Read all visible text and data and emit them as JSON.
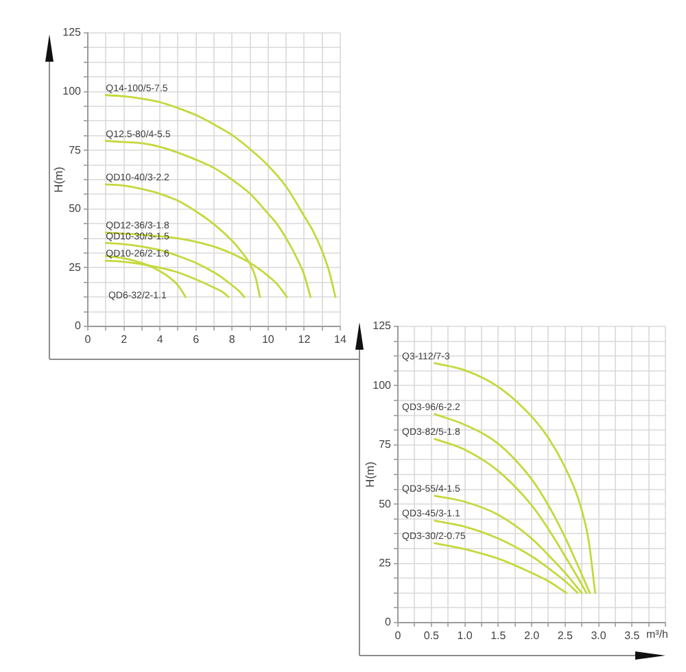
{
  "chart_data": [
    {
      "type": "line",
      "ylabel": "H(m)",
      "xlim": [
        0,
        14
      ],
      "xticks": [
        0,
        {
          "value": 1,
          "label": null
        },
        2,
        {
          "value": 3,
          "label": null
        },
        4,
        {
          "value": 5,
          "label": null
        },
        6,
        {
          "value": 7,
          "label": null
        },
        8,
        {
          "value": 9,
          "label": null
        },
        10,
        {
          "value": 11,
          "label": null
        },
        12,
        {
          "value": 13,
          "label": null
        },
        14
      ],
      "ylim": [
        0,
        125
      ],
      "yticks": [
        0,
        {
          "value": 6.25,
          "label": null
        },
        {
          "value": 12.5,
          "label": null
        },
        {
          "value": 18.75,
          "label": null
        },
        25,
        {
          "value": 31.25,
          "label": null
        },
        {
          "value": 37.5,
          "label": null
        },
        {
          "value": 43.75,
          "label": null
        },
        50,
        {
          "value": 56.25,
          "label": null
        },
        {
          "value": 62.5,
          "label": null
        },
        {
          "value": 68.75,
          "label": null
        },
        75,
        {
          "value": 81.25,
          "label": null
        },
        {
          "value": 87.5,
          "label": null
        },
        {
          "value": 93.75,
          "label": null
        },
        100,
        {
          "value": 106.25,
          "label": null
        },
        {
          "value": 112.5,
          "label": null
        },
        {
          "value": 118.75,
          "label": null
        },
        125
      ],
      "grid": true,
      "legend": false,
      "marker": "none",
      "line_style": "solid",
      "series": [
        {
          "name": "Q14-100/5-7.5",
          "color": "#c5d83c",
          "x": [
            1,
            2,
            3,
            4,
            5,
            6,
            7,
            8,
            9,
            10,
            11,
            12,
            12.5,
            13,
            13.4,
            13.73
          ],
          "values": [
            98.5,
            98,
            97,
            95.5,
            93,
            90,
            86,
            81.5,
            75.5,
            68.5,
            59.5,
            47,
            40.5,
            32,
            23,
            12.5
          ]
        },
        {
          "name": "Q12.5-80/4-5.5",
          "color": "#c5d83c",
          "x": [
            1,
            2,
            3,
            4,
            5,
            6,
            7,
            8,
            9,
            10,
            10.5,
            11,
            11.5,
            12,
            12.35
          ],
          "values": [
            79,
            78.5,
            78,
            76.5,
            74,
            71,
            67.5,
            62.5,
            56.5,
            48,
            43.5,
            37.5,
            30.5,
            22,
            12.5
          ]
        },
        {
          "name": "QD10-40/3-2.2",
          "color": "#c5d83c",
          "x": [
            1,
            2,
            3,
            4,
            5,
            6,
            7,
            8,
            8.5,
            9,
            9.3,
            9.55
          ],
          "values": [
            60.5,
            60,
            58.5,
            56.5,
            53.5,
            49,
            43.5,
            36.5,
            32,
            26.5,
            21,
            12.5
          ]
        },
        {
          "name": "QD12-36/3-1.8",
          "color": "#c5d83c",
          "x": [
            1,
            3,
            5,
            7,
            8,
            8.9,
            9.5,
            10,
            10.5,
            11.05
          ],
          "values": [
            40,
            39,
            37.5,
            34,
            31,
            27.5,
            24.5,
            21.5,
            18,
            12.5
          ]
        },
        {
          "name": "QD10-30/3-1.5",
          "color": "#c5d83c",
          "x": [
            1,
            2,
            3,
            4,
            5,
            6,
            7,
            7.5,
            8,
            8.4,
            8.68
          ],
          "values": [
            35.5,
            35,
            34,
            32.5,
            30,
            27,
            23,
            20.5,
            17.5,
            15,
            12.5
          ]
        },
        {
          "name": "QD10-26/2-1.6",
          "color": "#c5d83c",
          "x": [
            1,
            2,
            3,
            4,
            5,
            6,
            7,
            7.5,
            7.8
          ],
          "values": [
            28,
            27.5,
            26.5,
            25,
            23,
            20,
            16.5,
            14.5,
            12.5
          ]
        },
        {
          "name": "QD6-32/2-1.1",
          "color": "#c5d83c",
          "x": [
            1,
            2,
            3,
            3.5,
            4,
            4.5,
            5,
            5.43
          ],
          "values": [
            30,
            29,
            27,
            25.5,
            23.5,
            21,
            17.5,
            12.5
          ]
        }
      ]
    },
    {
      "type": "line",
      "ylabel": "H(m)",
      "xlabel": "m³/h",
      "xlim": [
        0,
        4
      ],
      "xticks": [
        0,
        {
          "value": 0.25,
          "label": null
        },
        0.5,
        {
          "value": 0.75,
          "label": null
        },
        {
          "value": 1,
          "label": "1.0"
        },
        {
          "value": 1.25,
          "label": null
        },
        1.5,
        {
          "value": 1.75,
          "label": null
        },
        {
          "value": 2,
          "label": "2.0"
        },
        {
          "value": 2.25,
          "label": null
        },
        2.5,
        {
          "value": 2.75,
          "label": null
        },
        {
          "value": 3,
          "label": "3.0"
        },
        {
          "value": 3.25,
          "label": null
        },
        3.5,
        {
          "value": 3.75,
          "label": null
        },
        {
          "value": 4,
          "label": null
        }
      ],
      "ylim": [
        0,
        125
      ],
      "yticks": [
        0,
        {
          "value": 6.25,
          "label": null
        },
        {
          "value": 12.5,
          "label": null
        },
        {
          "value": 18.75,
          "label": null
        },
        25,
        {
          "value": 31.25,
          "label": null
        },
        {
          "value": 37.5,
          "label": null
        },
        {
          "value": 43.75,
          "label": null
        },
        50,
        {
          "value": 56.25,
          "label": null
        },
        {
          "value": 62.5,
          "label": null
        },
        {
          "value": 68.75,
          "label": null
        },
        75,
        {
          "value": 81.25,
          "label": null
        },
        {
          "value": 87.5,
          "label": null
        },
        {
          "value": 93.75,
          "label": null
        },
        100,
        {
          "value": 106.25,
          "label": null
        },
        {
          "value": 112.5,
          "label": null
        },
        {
          "value": 118.75,
          "label": null
        },
        125
      ],
      "grid": true,
      "legend": false,
      "marker": "none",
      "line_style": "solid",
      "series": [
        {
          "name": "Q3-112/7-3",
          "color": "#c5d83c",
          "x": [
            0.55,
            1.0,
            1.5,
            2.0,
            2.25,
            2.5,
            2.7,
            2.85,
            2.95
          ],
          "values": [
            109.5,
            106.5,
            99.5,
            87,
            78,
            65.5,
            52,
            35,
            12.5
          ]
        },
        {
          "name": "QD3-96/6-2.2",
          "color": "#c5d83c",
          "x": [
            0.55,
            1.0,
            1.5,
            2.0,
            2.25,
            2.5,
            2.7,
            2.87
          ],
          "values": [
            88,
            83.5,
            75.5,
            60.5,
            49.5,
            36,
            23.5,
            12.5
          ]
        },
        {
          "name": "QD3-82/5-1.8",
          "color": "#c5d83c",
          "x": [
            0.55,
            1.0,
            1.5,
            2.0,
            2.25,
            2.5,
            2.7,
            2.82
          ],
          "values": [
            77.5,
            73,
            64,
            49.5,
            39.5,
            28,
            18.5,
            12.5
          ]
        },
        {
          "name": "QD3-55/4-1.5",
          "color": "#c5d83c",
          "x": [
            0.55,
            1.0,
            1.5,
            2.0,
            2.25,
            2.5,
            2.75
          ],
          "values": [
            53.5,
            51,
            45.5,
            35.5,
            28.5,
            21,
            12.5
          ]
        },
        {
          "name": "QD3-45/3-1.1",
          "color": "#c5d83c",
          "x": [
            0.55,
            1.0,
            1.5,
            2.0,
            2.25,
            2.5,
            2.69
          ],
          "values": [
            43,
            40.5,
            35.5,
            28,
            23,
            17.5,
            12.5
          ]
        },
        {
          "name": "QD3-30/2-0.75",
          "color": "#c5d83c",
          "x": [
            0.55,
            1.0,
            1.5,
            2.0,
            2.25,
            2.52
          ],
          "values": [
            33.5,
            31,
            27,
            21,
            17.5,
            12.5
          ]
        }
      ]
    }
  ]
}
